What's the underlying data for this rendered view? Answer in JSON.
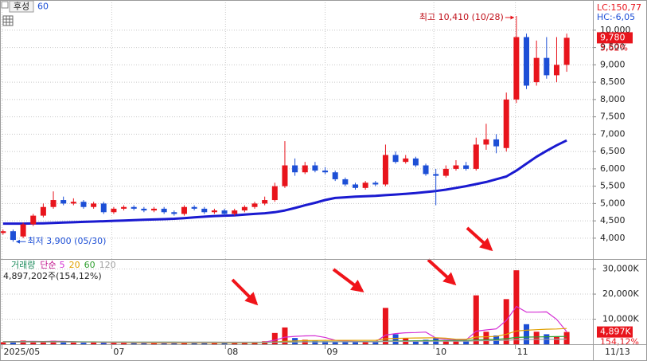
{
  "chart_data": [
    {
      "type": "candlestick",
      "title": "후성",
      "subtitle": "60",
      "top_labels": [
        "LC:150,77",
        "HC:-6,05"
      ],
      "high_label": "최고 10,410 (10/28)",
      "low_label": "최저 3,900 (05/30)",
      "last_label": "9,780",
      "change_label": "5,62%",
      "up_color": "#e8141c",
      "down_color": "#1d4fd6",
      "open": [
        4150,
        4200,
        4050,
        4400,
        4650,
        4900,
        5100,
        5000,
        5050,
        4900,
        5000,
        4750,
        4850,
        4900,
        4850,
        4800,
        4850,
        4750,
        4700,
        4900,
        4850,
        4750,
        4800,
        4700,
        4800,
        4900,
        5000,
        5100,
        5500,
        6100,
        5900,
        6100,
        5950,
        5900,
        5700,
        5550,
        5450,
        5600,
        5550,
        6400,
        6200,
        6300,
        6100,
        5850,
        5800,
        6000,
        6100,
        6000,
        6700,
        6850,
        6600,
        8000,
        9800,
        8500,
        9200,
        8700,
        9000
      ],
      "high": [
        4250,
        4250,
        4450,
        4700,
        5000,
        5350,
        5200,
        5150,
        5100,
        5050,
        5050,
        4900,
        4950,
        4950,
        4900,
        4900,
        4900,
        4800,
        4950,
        4950,
        4900,
        4850,
        4850,
        4850,
        4950,
        5050,
        5200,
        5600,
        6800,
        6300,
        6200,
        6200,
        6050,
        5950,
        5750,
        5600,
        5650,
        5650,
        6700,
        6500,
        6400,
        6350,
        6150,
        6000,
        6100,
        6250,
        6200,
        6900,
        7300,
        7000,
        8200,
        10410,
        9900,
        9700,
        9800,
        9800,
        9900
      ],
      "low": [
        4100,
        3900,
        4000,
        4350,
        4600,
        4850,
        4950,
        4950,
        4850,
        4850,
        4700,
        4700,
        4800,
        4800,
        4750,
        4750,
        4700,
        4650,
        4650,
        4800,
        4700,
        4700,
        4650,
        4650,
        4750,
        4850,
        4950,
        5050,
        5450,
        5800,
        5850,
        5900,
        5850,
        5650,
        5500,
        5400,
        5400,
        5500,
        5500,
        6150,
        6150,
        6050,
        5800,
        4950,
        5750,
        5950,
        5950,
        5950,
        6550,
        6450,
        6500,
        7900,
        8300,
        8400,
        8600,
        8500,
        8800
      ],
      "close": [
        4200,
        3950,
        4400,
        4650,
        4900,
        5100,
        5000,
        5050,
        4900,
        5000,
        4750,
        4850,
        4900,
        4850,
        4800,
        4850,
        4750,
        4700,
        4900,
        4850,
        4750,
        4800,
        4700,
        4800,
        4900,
        5000,
        5100,
        5500,
        6100,
        5900,
        6100,
        5950,
        5900,
        5700,
        5550,
        5450,
        5600,
        5550,
        6400,
        6200,
        6300,
        6100,
        5850,
        5800,
        6000,
        6100,
        6000,
        6700,
        6850,
        6650,
        8000,
        9800,
        8400,
        9200,
        8700,
        9000,
        9780
      ],
      "lines": [
        {
          "color": "#1a1ad0",
          "values": [
            4420,
            4420,
            4420,
            4425,
            4430,
            4440,
            4450,
            4460,
            4470,
            4480,
            4490,
            4500,
            4510,
            4520,
            4530,
            4540,
            4550,
            4560,
            4580,
            4600,
            4620,
            4640,
            4650,
            4660,
            4680,
            4700,
            4720,
            4750,
            4800,
            4870,
            4950,
            5020,
            5100,
            5160,
            5180,
            5200,
            5210,
            5220,
            5240,
            5260,
            5280,
            5300,
            5330,
            5360,
            5400,
            5450,
            5500,
            5560,
            5620,
            5700,
            5780,
            5950,
            6150,
            6350,
            6520,
            6680,
            6820
          ]
        }
      ],
      "xlim": [
        -0.3,
        58.6
      ],
      "ylim": [
        3400,
        10870
      ],
      "yticks": [
        {
          "value": 4000,
          "label": "4,000"
        },
        {
          "value": 4500,
          "label": "4,500"
        },
        {
          "value": 5000,
          "label": "5,000"
        },
        {
          "value": 5500,
          "label": "5,500"
        },
        {
          "value": 6000,
          "label": "6,000"
        },
        {
          "value": 6500,
          "label": "6,500"
        },
        {
          "value": 7000,
          "label": "7,000"
        },
        {
          "value": 7500,
          "label": "7,500"
        },
        {
          "value": 8000,
          "label": "8,000"
        },
        {
          "value": 8500,
          "label": "8,500"
        },
        {
          "value": 9000,
          "label": "9,000"
        },
        {
          "value": 9500,
          "label": "9,500"
        },
        {
          "value": 10000,
          "label": "10,000"
        }
      ],
      "grid": true
    },
    {
      "type": "bar",
      "title": "거래량",
      "legend_title": "단순",
      "subtitle": "4,897,202주(154,12%)",
      "last_label": "4,897K",
      "ratio_label": "154,12%",
      "last_date_label": "11/13",
      "values": [
        800,
        1200,
        1500,
        1000,
        900,
        1400,
        900,
        700,
        600,
        700,
        800,
        600,
        500,
        500,
        600,
        500,
        500,
        600,
        700,
        500,
        500,
        600,
        500,
        700,
        800,
        900,
        1200,
        4500,
        6700,
        2500,
        1800,
        1500,
        1200,
        1000,
        900,
        900,
        1000,
        900,
        14500,
        4000,
        2500,
        1500,
        1800,
        2500,
        1500,
        1200,
        1400,
        19500,
        5000,
        3500,
        18000,
        29500,
        8000,
        5000,
        4000,
        3000,
        4897
      ],
      "series": [
        {
          "name": "5",
          "color": "#d42ed4",
          "values": [
            1000,
            1050,
            1100,
            1150,
            1080,
            1200,
            1140,
            980,
            900,
            860,
            740,
            680,
            640,
            620,
            600,
            540,
            520,
            540,
            580,
            560,
            560,
            580,
            560,
            560,
            620,
            700,
            820,
            1620,
            2820,
            3160,
            3340,
            3400,
            2740,
            1600,
            1280,
            1100,
            1000,
            940,
            3640,
            4260,
            4580,
            4680,
            4860,
            2460,
            1960,
            1700,
            1680,
            5220,
            5720,
            6120,
            9480,
            15100,
            12800,
            12800,
            12900,
            9900,
            4980
          ]
        },
        {
          "name": "20",
          "color": "#e0a000",
          "values": [
            900,
            900,
            950,
            950,
            950,
            950,
            950,
            900,
            900,
            850,
            800,
            750,
            700,
            650,
            650,
            600,
            600,
            600,
            600,
            600,
            600,
            600,
            600,
            600,
            620,
            650,
            700,
            900,
            1200,
            1350,
            1450,
            1500,
            1550,
            1550,
            1550,
            1550,
            1550,
            1550,
            2200,
            2350,
            2450,
            2500,
            2550,
            2600,
            2400,
            2000,
            2000,
            2900,
            3000,
            3100,
            4000,
            5300,
            5600,
            5800,
            6000,
            6100,
            6300
          ]
        },
        {
          "name": "60",
          "color": "#2e9e2e",
          "values": [
            1000,
            1000,
            1000,
            1000,
            1000,
            1000,
            1000,
            980,
            960,
            940,
            920,
            900,
            880,
            860,
            850,
            840,
            830,
            820,
            810,
            800,
            790,
            780,
            770,
            760,
            760,
            760,
            770,
            820,
            900,
            940,
            970,
            990,
            1000,
            1010,
            1020,
            1030,
            1040,
            1050,
            1280,
            1340,
            1380,
            1400,
            1420,
            1450,
            1460,
            1470,
            1480,
            1800,
            1880,
            1940,
            2240,
            2720,
            2850,
            2930,
            3000,
            3040,
            3100
          ]
        },
        {
          "name": "120",
          "color": "#a0a0a0",
          "values": [
            900,
            900,
            900,
            900,
            900,
            900,
            900,
            900,
            900,
            900,
            890,
            880,
            870,
            860,
            860,
            850,
            850,
            850,
            840,
            840,
            840,
            830,
            830,
            830,
            830,
            830,
            840,
            860,
            900,
            920,
            940,
            950,
            960,
            970,
            980,
            990,
            1000,
            1000,
            1100,
            1130,
            1150,
            1170,
            1180,
            1200,
            1210,
            1220,
            1230,
            1380,
            1420,
            1450,
            1600,
            1850,
            1920,
            1960,
            2000,
            2030,
            2060
          ]
        }
      ],
      "ylim": [
        0,
        34000
      ],
      "yticks": [
        {
          "value": 10000,
          "label": "10,000K"
        },
        {
          "value": 20000,
          "label": "20,000K"
        },
        {
          "value": 30000,
          "label": "30,000K"
        }
      ],
      "xticks": [
        {
          "value": -0.1,
          "label": "2025/05"
        },
        {
          "value": 10.8,
          "label": "07"
        },
        {
          "value": 22.1,
          "label": "08"
        },
        {
          "value": 32.0,
          "label": "09"
        },
        {
          "value": 42.8,
          "label": "10"
        },
        {
          "value": 50.9,
          "label": "11"
        }
      ],
      "grid": true
    }
  ]
}
